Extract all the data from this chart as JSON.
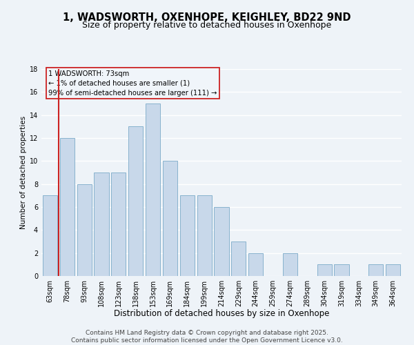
{
  "title": "1, WADSWORTH, OXENHOPE, KEIGHLEY, BD22 9ND",
  "subtitle": "Size of property relative to detached houses in Oxenhope",
  "xlabel": "Distribution of detached houses by size in Oxenhope",
  "ylabel": "Number of detached properties",
  "categories": [
    "63sqm",
    "78sqm",
    "93sqm",
    "108sqm",
    "123sqm",
    "138sqm",
    "153sqm",
    "169sqm",
    "184sqm",
    "199sqm",
    "214sqm",
    "229sqm",
    "244sqm",
    "259sqm",
    "274sqm",
    "289sqm",
    "304sqm",
    "319sqm",
    "334sqm",
    "349sqm",
    "364sqm"
  ],
  "values": [
    7,
    12,
    8,
    9,
    9,
    13,
    15,
    10,
    7,
    7,
    6,
    3,
    2,
    0,
    2,
    0,
    1,
    1,
    0,
    1,
    1
  ],
  "bar_color": "#c8d8ea",
  "bar_edge_color": "#7aaac8",
  "vline_color": "#cc2222",
  "annotation_text": "1 WADSWORTH: 73sqm\n← 1% of detached houses are smaller (1)\n99% of semi-detached houses are larger (111) →",
  "annotation_box_edge_color": "#cc2222",
  "annotation_bg": "#f0f5fa",
  "ylim": [
    0,
    18
  ],
  "yticks": [
    0,
    2,
    4,
    6,
    8,
    10,
    12,
    14,
    16,
    18
  ],
  "background_color": "#eef3f8",
  "plot_bg_color": "#eef3f8",
  "grid_color": "#ffffff",
  "footer": "Contains HM Land Registry data © Crown copyright and database right 2025.\nContains public sector information licensed under the Open Government Licence v3.0.",
  "title_fontsize": 10.5,
  "subtitle_fontsize": 9,
  "xlabel_fontsize": 8.5,
  "ylabel_fontsize": 7.5,
  "tick_fontsize": 7,
  "footer_fontsize": 6.5
}
